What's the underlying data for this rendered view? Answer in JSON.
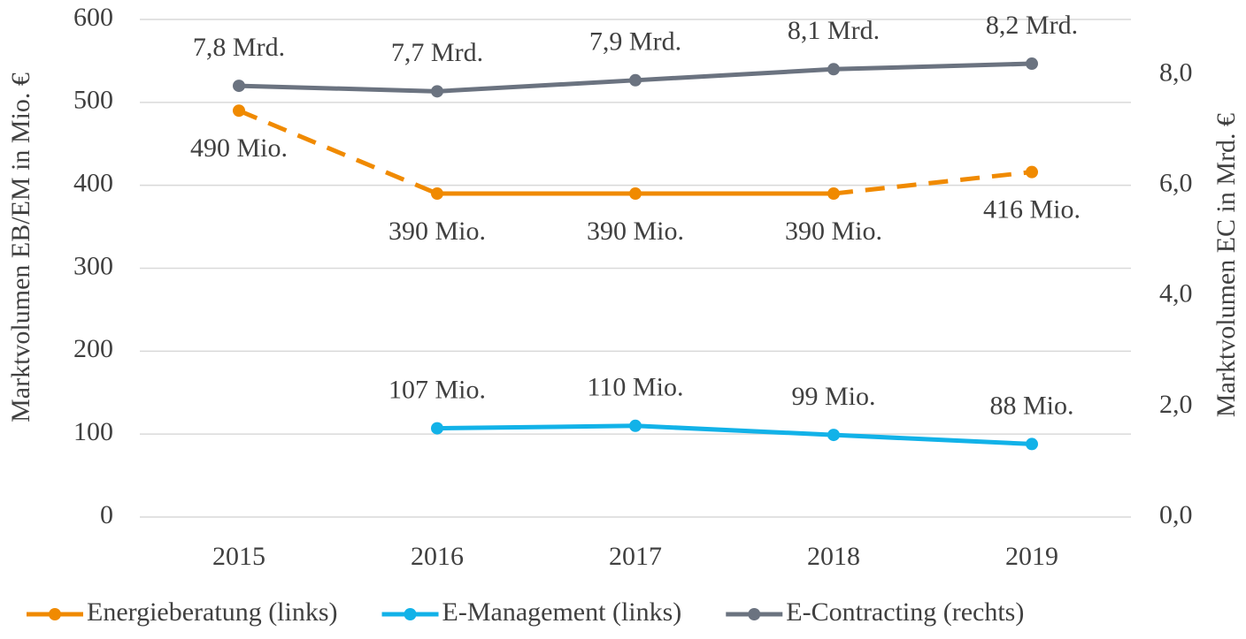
{
  "chart_data": {
    "type": "line",
    "y_label": "Marktvolumen EB/EM in Mio. €",
    "y2_label": "Marktvolumen EC in Mrd. €",
    "categories": [
      "2015",
      "2016",
      "2017",
      "2018",
      "2019"
    ],
    "series": [
      {
        "name": "Energieberatung (links)",
        "color": "#f08a00",
        "values": [
          490,
          390,
          390,
          390,
          416
        ],
        "value_labels": [
          "490 Mio.",
          "390 Mio.",
          "390 Mio.",
          "390 Mio.",
          "416 Mio."
        ],
        "segment_styles": [
          "dashed",
          "solid",
          "solid",
          "dashed"
        ]
      },
      {
        "name": "E-Management (links)",
        "color": "#12b2e8",
        "values": [
          null,
          107,
          110,
          99,
          88
        ],
        "value_labels": [
          null,
          "107 Mio.",
          "110 Mio.",
          "99 Mio.",
          "88 Mio."
        ]
      },
      {
        "name": "E-Contracting (rechts)",
        "color": "#6b7380",
        "axis": "y2",
        "values": [
          7.8,
          7.7,
          7.9,
          8.1,
          8.2
        ],
        "value_labels": [
          "7,8 Mrd.",
          "7,7 Mrd.",
          "7,9 Mrd.",
          "8,1 Mrd.",
          "8,2 Mrd."
        ]
      }
    ],
    "ylim": [
      0,
      600
    ],
    "yticks": [
      0,
      100,
      200,
      300,
      400,
      500,
      600
    ],
    "y2lim": [
      0,
      9
    ],
    "y2ticks": [
      {
        "value": 0,
        "label": "0,0"
      },
      {
        "value": 2,
        "label": "2,0"
      },
      {
        "value": 4,
        "label": "4,0"
      },
      {
        "value": 6,
        "label": "6,0"
      },
      {
        "value": 8,
        "label": "8,0"
      }
    ],
    "grid": true,
    "legend": "bottom"
  }
}
